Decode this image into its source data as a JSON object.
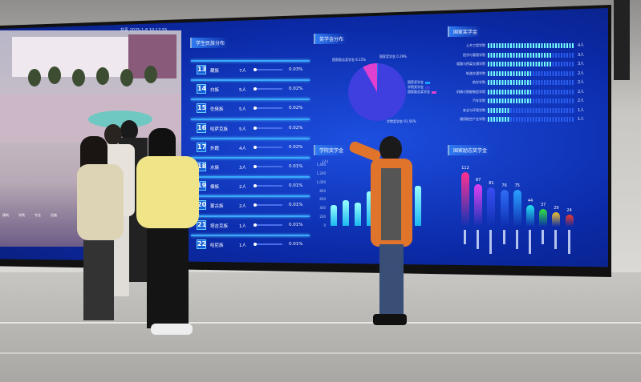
{
  "top_bar": {
    "text": "共青 2025-1-8 10:17:55"
  },
  "ethnicity_panel": {
    "title": "学生民族分布",
    "rows": [
      {
        "rank": "13",
        "name": "藏族",
        "count": "7人",
        "percent": "0.03%"
      },
      {
        "rank": "14",
        "name": "白族",
        "count": "5人",
        "percent": "0.02%"
      },
      {
        "rank": "15",
        "name": "仡佬族",
        "count": "5人",
        "percent": "0.02%"
      },
      {
        "rank": "16",
        "name": "哈萨克族",
        "count": "5人",
        "percent": "0.02%"
      },
      {
        "rank": "17",
        "name": "外籍",
        "count": "4人",
        "percent": "0.02%"
      },
      {
        "rank": "18",
        "name": "水族",
        "count": "3人",
        "percent": "0.01%"
      },
      {
        "rank": "19",
        "name": "傣族",
        "count": "2人",
        "percent": "0.01%"
      },
      {
        "rank": "20",
        "name": "蒙古族",
        "count": "2人",
        "percent": "0.01%"
      },
      {
        "rank": "21",
        "name": "塔吉克族",
        "count": "1人",
        "percent": "0.01%"
      },
      {
        "rank": "22",
        "name": "哈尼族",
        "count": "1人",
        "percent": "0.01%"
      }
    ]
  },
  "chart_data": [
    {
      "type": "pie",
      "title": "奖学金分布",
      "slices": [
        {
          "name": "国家奖学金",
          "value": 0.29,
          "label": "国家奖学金 0.29%",
          "color": "#1aa0ff"
        },
        {
          "name": "学院奖学金",
          "value": 91.56,
          "label": "学院奖学金 91.56%",
          "color": "#3f3fe0"
        },
        {
          "name": "国家励志奖学金",
          "value": 8.15,
          "label": "国家励志奖学金 8.15%",
          "color": "#e040d0"
        }
      ],
      "legend": "right"
    },
    {
      "type": "bar",
      "title": "学院奖学金",
      "ylabel": "(人)",
      "ylim": [
        0,
        1400
      ],
      "yticks": [
        "0",
        "200",
        "400",
        "600",
        "800",
        "1,000",
        "1,200",
        "1,400"
      ],
      "values": [
        480,
        590,
        530,
        800,
        1100,
        1000,
        1280,
        930
      ]
    },
    {
      "type": "bar",
      "orientation": "horizontal",
      "title": "国家奖学金",
      "categories": [
        "土木工程学院",
        "经济与管理学院",
        "道路与桥梁交通学院",
        "轨道交通学院",
        "航空学院",
        "机械与智能制造学院",
        "汽车学院",
        "安全与环境学院",
        "通用航空产业学院"
      ],
      "values": [
        4,
        3,
        3,
        2,
        2,
        2,
        2,
        1,
        1
      ],
      "value_labels": [
        "4人",
        "3人",
        "3人",
        "2人",
        "2人",
        "2人",
        "2人",
        "1人",
        "1人"
      ],
      "xlim": [
        0,
        4
      ]
    },
    {
      "type": "bar",
      "title": "国家励志奖学金",
      "values": [
        112,
        87,
        81,
        76,
        75,
        44,
        37,
        29,
        24
      ],
      "colors": [
        "#ff2f8f",
        "#e040f0",
        "#3a4cf0",
        "#2f6cf5",
        "#2aa0ff",
        "#25e0f0",
        "#30e040",
        "#f0c030",
        "#f03a2a"
      ]
    }
  ],
  "menu": {
    "items": [
      "建筑",
      "学院",
      "专业",
      "设施"
    ]
  }
}
